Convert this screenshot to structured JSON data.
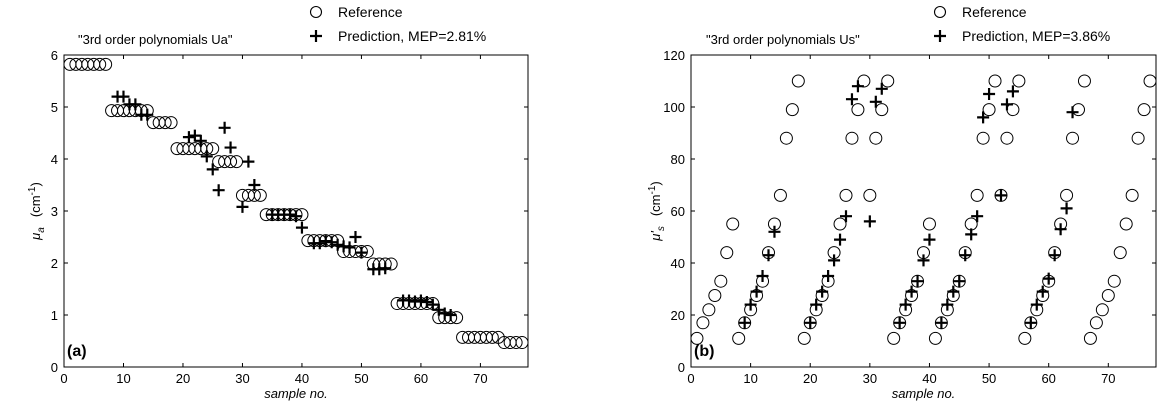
{
  "chart_data": [
    {
      "type": "scatter",
      "panel_label": "(a)",
      "title": "\"3rd order polynomials Ua\"",
      "xlabel": "sample no.",
      "ylabel": "μa (cm-1)",
      "ylabel_symbol": "μ",
      "ylabel_sub": "a",
      "ylabel_unit": "(cm",
      "ylabel_unit_sup": "-1",
      "ylabel_unit_close": ")",
      "xlim": [
        0,
        78
      ],
      "ylim": [
        0,
        6
      ],
      "xticks": [
        0,
        10,
        20,
        30,
        40,
        50,
        60,
        70
      ],
      "yticks": [
        0,
        1,
        2,
        3,
        4,
        5,
        6
      ],
      "legend_placement": "top",
      "series": [
        {
          "name": "Reference",
          "marker": "circle",
          "x": [
            1,
            2,
            3,
            4,
            5,
            6,
            7,
            8,
            9,
            10,
            11,
            12,
            13,
            14,
            15,
            16,
            17,
            18,
            19,
            20,
            21,
            22,
            23,
            24,
            25,
            26,
            27,
            28,
            29,
            30,
            31,
            32,
            33,
            34,
            35,
            36,
            37,
            38,
            39,
            40,
            41,
            42,
            43,
            44,
            45,
            46,
            47,
            48,
            49,
            50,
            51,
            52,
            53,
            54,
            55,
            56,
            57,
            58,
            59,
            60,
            61,
            62,
            63,
            64,
            65,
            66,
            67,
            68,
            69,
            70,
            71,
            72,
            73,
            74,
            75,
            76,
            77
          ],
          "y": [
            5.82,
            5.82,
            5.82,
            5.82,
            5.82,
            5.82,
            5.82,
            4.93,
            4.93,
            4.93,
            4.93,
            4.93,
            4.93,
            4.93,
            4.7,
            4.7,
            4.7,
            4.7,
            4.2,
            4.2,
            4.2,
            4.2,
            4.2,
            4.2,
            4.2,
            3.95,
            3.95,
            3.95,
            3.95,
            3.3,
            3.3,
            3.3,
            3.3,
            2.93,
            2.93,
            2.93,
            2.93,
            2.93,
            2.93,
            2.93,
            2.43,
            2.43,
            2.43,
            2.43,
            2.43,
            2.43,
            2.22,
            2.22,
            2.22,
            2.22,
            2.22,
            1.98,
            1.98,
            1.98,
            1.98,
            1.22,
            1.22,
            1.22,
            1.22,
            1.22,
            1.22,
            1.22,
            0.95,
            0.95,
            0.95,
            0.95,
            0.57,
            0.57,
            0.57,
            0.57,
            0.57,
            0.57,
            0.57,
            0.47,
            0.47,
            0.47,
            0.47
          ]
        },
        {
          "name": "Prediction, MEP=2.81%",
          "marker": "plus",
          "x": [
            9,
            10,
            11,
            12,
            13,
            14,
            21,
            22,
            23,
            24,
            25,
            26,
            27,
            28,
            30,
            31,
            32,
            35,
            36,
            37,
            38,
            39,
            40,
            42,
            43,
            44,
            45,
            46,
            47,
            48,
            49,
            50,
            52,
            53,
            54,
            57,
            58,
            59,
            60,
            61,
            62,
            63,
            64,
            65
          ],
          "y": [
            5.2,
            5.2,
            5.05,
            5.05,
            4.85,
            4.85,
            4.42,
            4.45,
            4.35,
            4.05,
            3.8,
            3.4,
            4.6,
            4.22,
            3.08,
            3.95,
            3.5,
            2.93,
            2.93,
            2.93,
            2.93,
            2.9,
            2.68,
            2.38,
            2.38,
            2.42,
            2.4,
            2.35,
            2.32,
            2.3,
            2.5,
            2.2,
            1.88,
            1.88,
            1.9,
            1.28,
            1.28,
            1.26,
            1.28,
            1.25,
            1.2,
            1.1,
            1.03,
            1.0
          ]
        }
      ]
    },
    {
      "type": "scatter",
      "panel_label": "(b)",
      "title": "\"3rd order polynomials Us\"",
      "xlabel": "sample no.",
      "ylabel": "μ's (cm-1)",
      "ylabel_symbol": "μ'",
      "ylabel_sub": "s",
      "ylabel_unit": "(cm",
      "ylabel_unit_sup": "-1",
      "ylabel_unit_close": ")",
      "xlim": [
        0,
        78
      ],
      "ylim": [
        0,
        120
      ],
      "xticks": [
        0,
        10,
        20,
        30,
        40,
        50,
        60,
        70
      ],
      "yticks": [
        0,
        20,
        40,
        60,
        80,
        100,
        120
      ],
      "legend_placement": "top",
      "series": [
        {
          "name": "Reference",
          "marker": "circle",
          "x": [
            1,
            2,
            3,
            4,
            5,
            6,
            7,
            8,
            9,
            10,
            11,
            12,
            13,
            14,
            15,
            16,
            17,
            18,
            19,
            20,
            21,
            22,
            23,
            24,
            25,
            26,
            27,
            28,
            29,
            30,
            31,
            32,
            33,
            34,
            35,
            36,
            37,
            38,
            39,
            40,
            41,
            42,
            43,
            44,
            45,
            46,
            47,
            48,
            49,
            50,
            51,
            52,
            53,
            54,
            55,
            56,
            57,
            58,
            59,
            60,
            61,
            62,
            63,
            64,
            65,
            66,
            67,
            68,
            69,
            70,
            71,
            72,
            73,
            74,
            75,
            76,
            77
          ],
          "y": [
            11,
            17,
            22,
            27.5,
            33,
            44,
            55,
            11,
            17,
            22,
            27.5,
            33,
            44,
            55,
            66,
            88,
            99,
            110,
            11,
            17,
            22,
            27.5,
            33,
            44,
            55,
            66,
            88,
            99,
            110,
            66,
            88,
            99,
            110,
            11,
            17,
            22,
            27.5,
            33,
            44,
            55,
            11,
            17,
            22,
            27.5,
            33,
            44,
            55,
            66,
            88,
            99,
            110,
            66,
            88,
            99,
            110,
            11,
            17,
            22,
            27.5,
            33,
            44,
            55,
            66,
            88,
            99,
            110,
            11,
            17,
            22,
            27.5,
            33,
            44,
            55,
            66,
            88,
            99,
            110
          ]
        },
        {
          "name": "Prediction, MEP=3.86%",
          "marker": "plus",
          "x": [
            9,
            10,
            11,
            12,
            13,
            14,
            20,
            21,
            22,
            23,
            24,
            25,
            26,
            27,
            28,
            30,
            31,
            32,
            35,
            36,
            37,
            38,
            39,
            40,
            42,
            43,
            44,
            45,
            46,
            47,
            48,
            49,
            50,
            52,
            53,
            54,
            57,
            58,
            59,
            60,
            61,
            62,
            63,
            64
          ],
          "y": [
            17,
            24,
            29,
            35,
            43,
            52,
            17,
            24,
            29,
            35,
            41,
            49,
            58,
            103,
            108,
            56,
            102,
            107,
            17,
            24,
            29,
            33,
            41,
            49,
            17,
            24,
            29,
            33,
            43,
            51,
            58,
            96,
            105,
            66,
            101,
            106,
            17,
            24,
            29,
            34,
            43,
            53,
            61,
            98
          ]
        }
      ]
    }
  ]
}
